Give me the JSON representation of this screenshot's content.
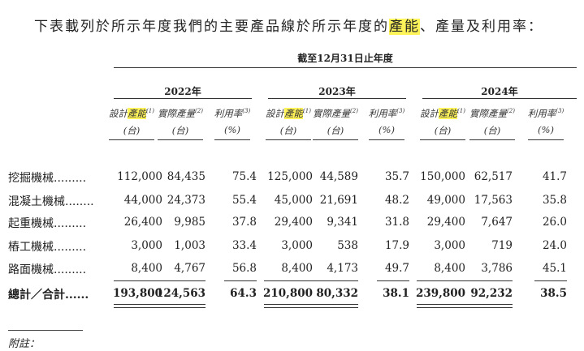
{
  "intro": {
    "before": "下表載列於所示年度我們的主要產品線於所示年度的",
    "highlight": "產能",
    "after": "、產量及利用率："
  },
  "period_header": "截至12月31日止年度",
  "years": [
    "2022年",
    "2023年",
    "2024年"
  ],
  "column_headers": {
    "capacity_prefix": "設計",
    "capacity_highlight": "產能",
    "capacity_sup": "(1)",
    "output": "實際產量",
    "output_sup": "(2)",
    "utilization": "利用率",
    "utilization_sup": "(3)",
    "unit_sets": "(台)",
    "unit_pct": "(%)"
  },
  "rows": [
    {
      "label": "挖掘機械.........",
      "values": [
        "112,000",
        "84,435",
        "75.4",
        "125,000",
        "44,589",
        "35.7",
        "150,000",
        "62,517",
        "41.7"
      ]
    },
    {
      "label": "混凝土機械........",
      "values": [
        "44,000",
        "24,373",
        "55.4",
        "45,000",
        "21,691",
        "48.2",
        "49,000",
        "17,563",
        "35.8"
      ]
    },
    {
      "label": "起重機械.........",
      "values": [
        "26,400",
        "9,985",
        "37.8",
        "29,400",
        "9,341",
        "31.8",
        "29,400",
        "7,647",
        "26.0"
      ]
    },
    {
      "label": "樁工機械.........",
      "values": [
        "3,000",
        "1,003",
        "33.4",
        "3,000",
        "538",
        "17.9",
        "3,000",
        "719",
        "24.0"
      ]
    },
    {
      "label": "路面機械.........",
      "values": [
        "8,400",
        "4,767",
        "56.8",
        "8,400",
        "4,173",
        "49.7",
        "8,400",
        "3,786",
        "45.1"
      ]
    }
  ],
  "total": {
    "label": "總計／合計......",
    "values": [
      "193,800",
      "124,563",
      "64.3",
      "210,800",
      "80,332",
      "38.1",
      "239,800",
      "92,232",
      "38.5"
    ]
  },
  "note_label": "附註："
}
